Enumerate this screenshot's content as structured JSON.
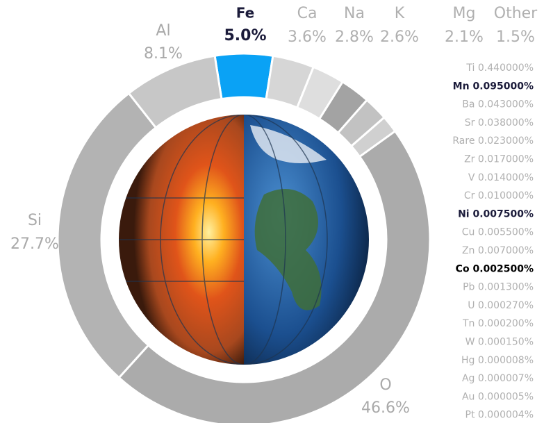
{
  "chart_data": {
    "type": "donut",
    "categories": [
      "Fe",
      "Ca",
      "Na",
      "K",
      "Mg",
      "Other",
      "O",
      "Si",
      "Al"
    ],
    "values": [
      5.0,
      3.6,
      2.8,
      2.6,
      2.1,
      1.5,
      46.6,
      27.7,
      8.1
    ],
    "value_labels": [
      "5.0%",
      "3.6%",
      "2.8%",
      "2.6%",
      "2.1%",
      "1.5%",
      "46.6%",
      "27.7%",
      "8.1%"
    ],
    "colors": [
      "#0aa2f5",
      "#d6d6d6",
      "#dedede",
      "#a3a3a3",
      "#c2c2c2",
      "#d0d0d0",
      "#ababab",
      "#b3b3b3",
      "#c7c7c7"
    ],
    "label_colors": [
      "#1b1b3a",
      "#b0b0b0",
      "#b0b0b0",
      "#b0b0b0",
      "#b0b0b0",
      "#b0b0b0",
      "#a9a9a9",
      "#a9a9a9",
      "#a9a9a9"
    ],
    "bold": [
      true,
      false,
      false,
      false,
      false,
      false,
      false,
      false,
      false
    ]
  },
  "trace_elements": {
    "categories": [
      "Ti",
      "Mn",
      "Ba",
      "Sr",
      "Rare",
      "Zr",
      "V",
      "Cr",
      "Ni",
      "Cu",
      "Zn",
      "Co",
      "Pb",
      "U",
      "Tn",
      "W",
      "Hg",
      "Ag",
      "Au",
      "Pt"
    ],
    "values": [
      0.44,
      0.095,
      0.043,
      0.038,
      0.023,
      0.017,
      0.014,
      0.01,
      0.0075,
      0.0055,
      0.007,
      0.0025,
      0.0013,
      0.00027,
      0.0002,
      0.00015,
      8e-06,
      7e-06,
      5e-06,
      4e-06
    ],
    "value_labels": [
      "0.440000%",
      "0.095000%",
      "0.043000%",
      "0.038000%",
      "0.023000%",
      "0.017000%",
      "0.014000%",
      "0.010000%",
      "0.007500%",
      "0.005500%",
      "0.007000%",
      "0.002500%",
      "0.001300%",
      "0.000270%",
      "0.000200%",
      "0.000150%",
      "0.000008%",
      "0.000007%",
      "0.000005%",
      "0.000004%"
    ],
    "colors": [
      "#b0b0b0",
      "#1b1b3a",
      "#b0b0b0",
      "#b0b0b0",
      "#b0b0b0",
      "#b0b0b0",
      "#b0b0b0",
      "#b0b0b0",
      "#1b1b3a",
      "#b0b0b0",
      "#b0b0b0",
      "#000000",
      "#b0b0b0",
      "#b0b0b0",
      "#b0b0b0",
      "#b0b0b0",
      "#b0b0b0",
      "#b0b0b0",
      "#b0b0b0",
      "#b0b0b0"
    ],
    "bold": [
      false,
      true,
      false,
      false,
      false,
      false,
      false,
      false,
      true,
      false,
      false,
      true,
      false,
      false,
      false,
      false,
      false,
      false,
      false,
      false
    ]
  }
}
